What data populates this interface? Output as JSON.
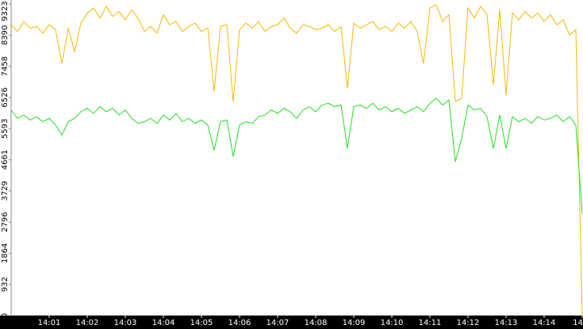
{
  "chart_data": {
    "type": "line",
    "x": [
      840,
      840.167,
      840.333,
      840.5,
      840.667,
      840.833,
      841,
      841.167,
      841.333,
      841.5,
      841.667,
      841.833,
      842,
      842.167,
      842.333,
      842.5,
      842.667,
      842.833,
      843,
      843.167,
      843.333,
      843.5,
      843.667,
      843.833,
      844,
      844.167,
      844.333,
      844.5,
      844.667,
      844.833,
      845,
      845.167,
      845.333,
      845.5,
      845.667,
      845.833,
      846,
      846.167,
      846.333,
      846.5,
      846.667,
      846.833,
      847,
      847.167,
      847.333,
      847.5,
      847.667,
      847.833,
      848,
      848.167,
      848.333,
      848.5,
      848.667,
      848.833,
      849,
      849.167,
      849.333,
      849.5,
      849.667,
      849.833,
      850,
      850.167,
      850.333,
      850.5,
      850.667,
      850.833,
      851,
      851.167,
      851.333,
      851.5,
      851.667,
      851.833,
      852,
      852.167,
      852.333,
      852.5,
      852.667,
      852.833,
      853,
      853.167,
      853.333,
      853.5,
      853.667,
      853.833,
      854,
      854.167,
      854.333,
      854.5,
      854.667,
      854.833,
      855
    ],
    "series": [
      {
        "color": "#f4b800",
        "values": [
          8700,
          8500,
          8800,
          8600,
          8650,
          8450,
          8700,
          8550,
          7540,
          8600,
          7900,
          8750,
          9050,
          9200,
          8900,
          9250,
          8950,
          9100,
          8850,
          9150,
          8900,
          8500,
          8650,
          8450,
          9000,
          8700,
          8800,
          8500,
          8650,
          8750,
          8500,
          8600,
          6710,
          8650,
          8700,
          6400,
          8550,
          8750,
          8600,
          8800,
          8500,
          8650,
          8700,
          8900,
          8600,
          8450,
          8700,
          8650,
          8550,
          8600,
          8700,
          8500,
          8650,
          6800,
          8750,
          8600,
          8700,
          8800,
          8550,
          8650,
          8500,
          8750,
          8600,
          8800,
          8500,
          7540,
          9200,
          9300,
          8800,
          9000,
          6400,
          6500,
          9200,
          8900,
          9250,
          9000,
          6900,
          9150,
          6600,
          9050,
          8850,
          9100,
          8900,
          9050,
          8800,
          9000,
          8700,
          8850,
          8400,
          8550,
          0
        ]
      },
      {
        "color": "#22dd22",
        "values": [
          6150,
          5900,
          6000,
          5850,
          5950,
          5800,
          5900,
          5700,
          5400,
          5800,
          5900,
          6100,
          6200,
          6050,
          6250,
          6100,
          6200,
          6000,
          6150,
          5900,
          5750,
          5800,
          5900,
          5750,
          6000,
          5850,
          6050,
          5800,
          5900,
          5750,
          5850,
          5700,
          4950,
          5800,
          5850,
          4760,
          5700,
          5800,
          5750,
          5950,
          6000,
          6150,
          6050,
          6200,
          6100,
          5900,
          6150,
          6250,
          6100,
          6300,
          6350,
          6250,
          6300,
          5000,
          6250,
          6300,
          6200,
          6350,
          6150,
          6250,
          6100,
          6200,
          6050,
          6150,
          6250,
          6100,
          6350,
          6500,
          6300,
          6450,
          4600,
          5300,
          6300,
          6150,
          6200,
          5950,
          5000,
          6000,
          5000,
          5950,
          5800,
          5900,
          5750,
          5950,
          5850,
          5900,
          6000,
          5800,
          5950,
          5700,
          3036
        ]
      }
    ],
    "xlim": [
      840,
      855
    ],
    "xticks": [
      {
        "value": 841,
        "label": "14:01"
      },
      {
        "value": 842,
        "label": "14:02"
      },
      {
        "value": 843,
        "label": "14:03"
      },
      {
        "value": 844,
        "label": "14:04"
      },
      {
        "value": 845,
        "label": "14:05"
      },
      {
        "value": 846,
        "label": "14:06"
      },
      {
        "value": 847,
        "label": "14:07"
      },
      {
        "value": 848,
        "label": "14:08"
      },
      {
        "value": 849,
        "label": "14:09"
      },
      {
        "value": 850,
        "label": "14:10"
      },
      {
        "value": 851,
        "label": "14:11"
      },
      {
        "value": 852,
        "label": "14:12"
      },
      {
        "value": 853,
        "label": "14:13"
      },
      {
        "value": 854,
        "label": "14:14"
      },
      {
        "value": 855,
        "label": "14"
      }
    ],
    "ylim": [
      0,
      9323
    ],
    "yticks": [
      0,
      932,
      1864,
      2796,
      3729,
      4661,
      5593,
      6526,
      7458,
      8390,
      9323
    ]
  }
}
